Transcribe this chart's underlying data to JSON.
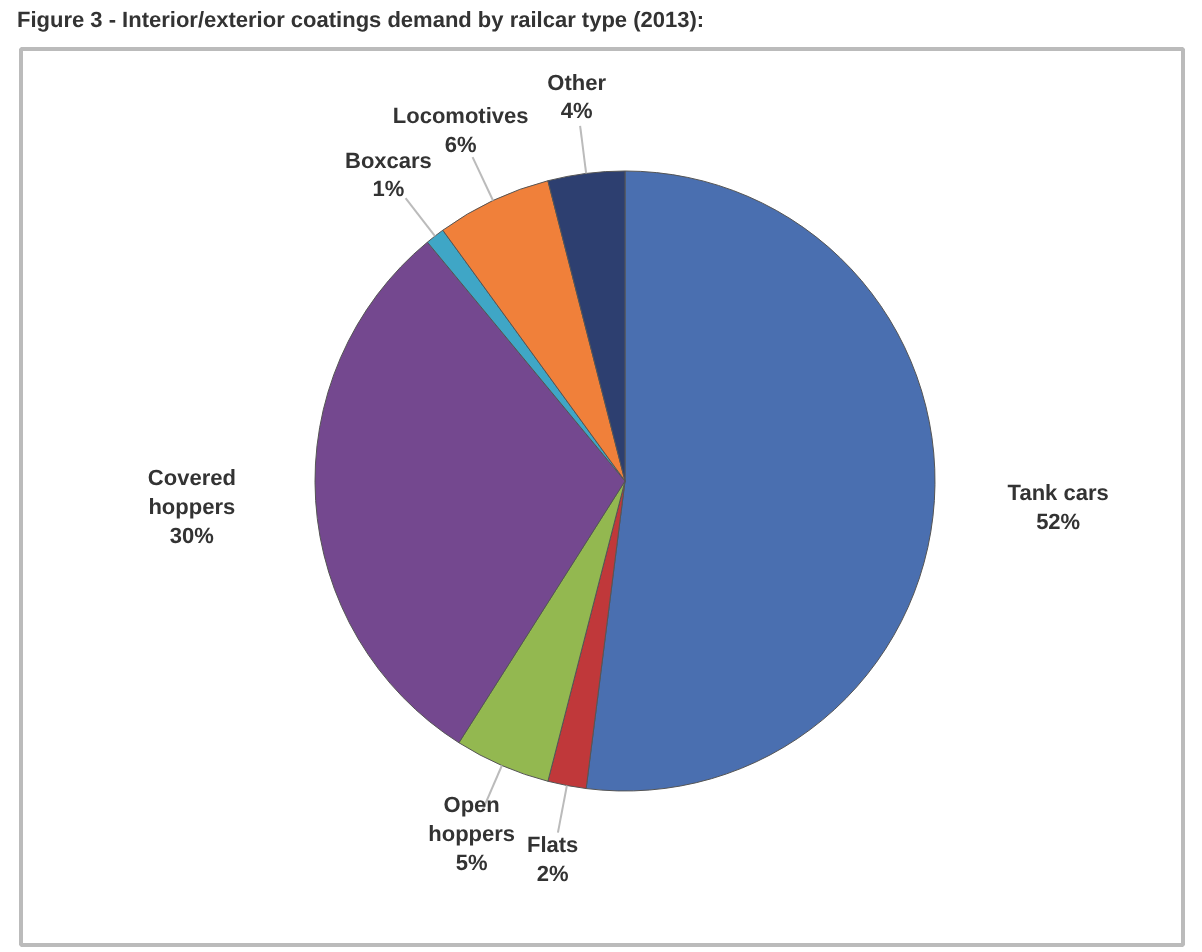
{
  "chart_data": {
    "type": "pie",
    "title": "Figure 3 - Interior/exterior coatings demand by railcar type (2013):",
    "categories": [
      "Tank cars",
      "Flats",
      "Open hoppers",
      "Covered hoppers",
      "Boxcars",
      "Locomotives",
      "Other"
    ],
    "values": [
      52,
      2,
      5,
      30,
      1,
      6,
      4
    ],
    "value_labels": [
      "52%",
      "2%",
      "5%",
      "30%",
      "1%",
      "6%",
      "4%"
    ],
    "colors": [
      "#4a6fb0",
      "#c0383a",
      "#93b850",
      "#74488f",
      "#3fa6c6",
      "#f0803a",
      "#2d3f70"
    ]
  }
}
